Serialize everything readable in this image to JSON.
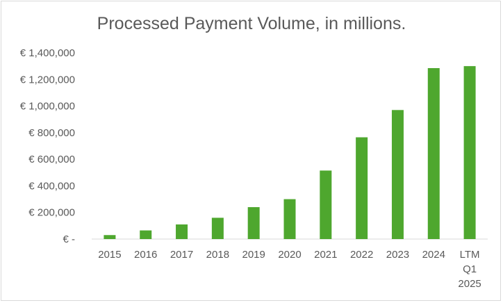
{
  "chart_data": {
    "type": "bar",
    "title": "Processed Payment Volume, in millions.",
    "xlabel": "",
    "ylabel": "",
    "categories": [
      [
        "2015"
      ],
      [
        "2016"
      ],
      [
        "2017"
      ],
      [
        "2018"
      ],
      [
        "2019"
      ],
      [
        "2020"
      ],
      [
        "2021"
      ],
      [
        "2022"
      ],
      [
        "2023"
      ],
      [
        "2024"
      ],
      [
        "LTM",
        "Q1",
        "2025"
      ]
    ],
    "values": [
      30000,
      65000,
      110000,
      160000,
      240000,
      300000,
      515000,
      765000,
      970000,
      1285000,
      1300000
    ],
    "ylim": [
      0,
      1400000
    ],
    "y_ticks": [
      0,
      200000,
      400000,
      600000,
      800000,
      1000000,
      1200000,
      1400000
    ],
    "y_tick_labels": [
      "€ -",
      "€ 200,000",
      "€ 400,000",
      "€ 600,000",
      "€ 800,000",
      "€ 1,000,000",
      "€ 1,200,000",
      "€ 1,400,000"
    ],
    "grid": false,
    "legend": "none",
    "bar_color": "#4ea72e",
    "text_color": "#595959"
  }
}
